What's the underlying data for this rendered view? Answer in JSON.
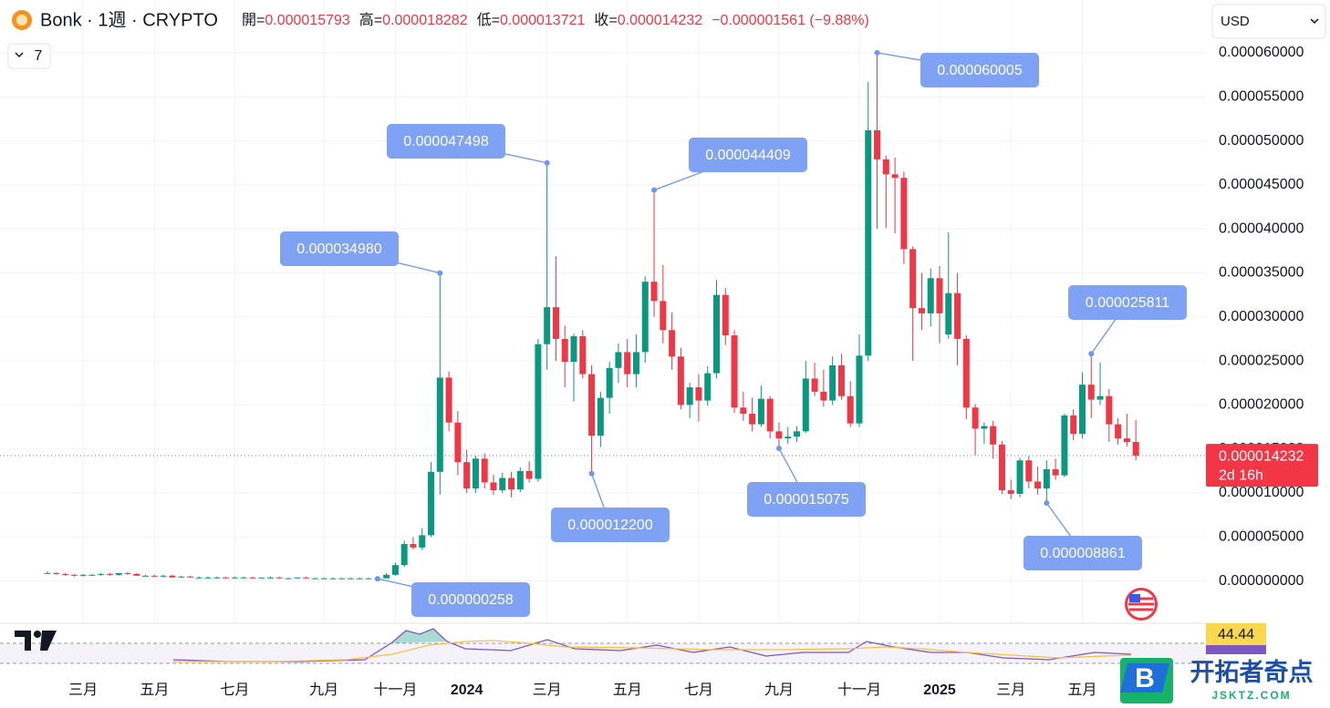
{
  "chart_data": {
    "type": "candlestick",
    "title": "Bonk · 1週 · CRYPTO",
    "header_labels": [
      "開=",
      "高=",
      "低=",
      "收="
    ],
    "change": "−0.000001561 (−9.88%)",
    "currency": "USD",
    "indicator_count": "7",
    "countdown": "2d 16h",
    "rsi_value": "44.44",
    "watermark": {
      "title": "开拓者奇点",
      "site": "JSKTZ.COM"
    },
    "up_color": "#089981",
    "down_color": "#f23645",
    "grid": true,
    "categories": [
      null,
      null,
      null,
      null,
      "三月",
      null,
      null,
      null,
      null,
      null,
      null,
      null,
      "五月",
      null,
      null,
      null,
      null,
      null,
      null,
      null,
      null,
      "七月",
      null,
      null,
      null,
      null,
      null,
      null,
      null,
      null,
      null,
      "九月",
      null,
      null,
      null,
      null,
      null,
      null,
      null,
      "十一月",
      null,
      null,
      null,
      null,
      null,
      null,
      null,
      "2024",
      null,
      null,
      null,
      null,
      null,
      null,
      null,
      null,
      "三月",
      null,
      null,
      null,
      null,
      null,
      null,
      null,
      null,
      "五月",
      null,
      null,
      null,
      null,
      null,
      null,
      null,
      "七月",
      null,
      null,
      null,
      null,
      null,
      null,
      null,
      null,
      "九月",
      null,
      null,
      null,
      null,
      null,
      null,
      null,
      null,
      "十一月",
      null,
      null,
      null,
      null,
      null,
      null,
      null,
      null,
      "2025",
      null,
      null,
      null,
      null,
      null,
      null,
      null,
      "三月",
      null,
      null,
      null,
      null,
      null,
      null,
      null,
      "五月",
      null,
      null,
      null,
      null,
      null,
      null
    ],
    "open": [
      9e-07,
      9e-07,
      8e-07,
      7e-07,
      6e-07,
      7e-07,
      7e-07,
      8e-07,
      7e-07,
      9e-07,
      8e-07,
      6e-07,
      6e-07,
      5e-07,
      6e-07,
      4e-07,
      5e-07,
      4e-07,
      4e-07,
      4e-07,
      4e-07,
      3e-07,
      4e-07,
      4e-07,
      3e-07,
      4e-07,
      4e-07,
      3e-07,
      3e-07,
      4e-07,
      3e-07,
      3e-07,
      3e-07,
      3e-07,
      3e-07,
      3e-07,
      3e-07,
      3e-07,
      3e-07,
      7e-07,
      1.8e-06,
      4.2e-06,
      3.8e-06,
      5.2e-06,
      1.24e-05,
      2.31e-05,
      1.8e-05,
      1.35e-05,
      1.05e-05,
      1.39e-05,
      1.12e-05,
      1.03e-05,
      1.17e-05,
      1.04e-05,
      1.25e-05,
      1.16e-05,
      2.69e-05,
      3.11e-05,
      2.75e-05,
      2.49e-05,
      2.78e-05,
      2.35e-05,
      1.65e-05,
      2.08e-05,
      2.42e-05,
      2.6e-05,
      2.35e-05,
      2.6e-05,
      3.4e-05,
      3.18e-05,
      2.85e-05,
      2.55e-05,
      2e-05,
      2.2e-05,
      2.05e-05,
      2.36e-05,
      3.25e-05,
      2.79e-05,
      1.97e-05,
      1.9e-05,
      1.78e-05,
      2.07e-05,
      1.7e-05,
      1.62e-05,
      1.64e-05,
      1.7e-05,
      2.3e-05,
      2.15e-05,
      2.05e-05,
      2.45e-05,
      2.1e-05,
      1.79e-05,
      2.56e-05,
      5.12e-05,
      4.79e-05,
      4.62e-05,
      4.58e-05,
      3.77e-05,
      3.1e-05,
      3.04e-05,
      3.44e-05,
      2.8e-05,
      3.27e-05,
      2.75e-05,
      1.97e-05,
      1.73e-05,
      1.76e-05,
      1.55e-05,
      1.03e-05,
      9.9e-06,
      1.37e-05,
      1.13e-05,
      1.05e-05,
      1.27e-05,
      1.2e-05,
      1.88e-05,
      1.67e-05,
      2.23e-05,
      2.06e-05,
      2.1e-05,
      1.78e-05,
      1.62e-05,
      1.5793e-05
    ],
    "high": [
      1.1e-06,
      1e-06,
      9e-07,
      8e-07,
      8e-07,
      8e-07,
      9e-07,
      9e-07,
      9e-07,
      1e-06,
      9e-07,
      7e-07,
      7e-07,
      7e-07,
      7e-07,
      6e-07,
      6e-07,
      5e-07,
      5e-07,
      5e-07,
      5e-07,
      5e-07,
      5e-07,
      5e-07,
      4e-07,
      5e-07,
      5e-07,
      4e-07,
      4e-07,
      5e-07,
      4e-07,
      4e-07,
      4e-07,
      4e-07,
      4e-07,
      4e-07,
      4e-07,
      4e-07,
      9e-07,
      2.1e-06,
      4.6e-06,
      5e-06,
      6e-06,
      1.35e-05,
      3.498e-05,
      2.38e-05,
      1.93e-05,
      1.49e-05,
      1.42e-05,
      1.45e-05,
      1.21e-05,
      1.23e-05,
      1.24e-05,
      1.29e-05,
      1.36e-05,
      2.75e-05,
      4.7498e-05,
      3.69e-05,
      2.9e-05,
      2.81e-05,
      2.85e-05,
      2.45e-05,
      2.15e-05,
      2.49e-05,
      2.7e-05,
      2.75e-05,
      2.8e-05,
      3.46e-05,
      4.4409e-05,
      3.59e-05,
      3.05e-05,
      2.65e-05,
      2.25e-05,
      2.35e-05,
      2.44e-05,
      3.42e-05,
      3.33e-05,
      2.85e-05,
      2.15e-05,
      2.08e-05,
      2.22e-05,
      2.1e-05,
      1.8e-05,
      1.75e-05,
      1.76e-05,
      2.5e-05,
      2.48e-05,
      2.4e-05,
      2.55e-05,
      2.58e-05,
      2.27e-05,
      2.8e-05,
      5.67e-05,
      6.0005e-05,
      4.83e-05,
      4.81e-05,
      4.65e-05,
      3.8e-05,
      3.5e-05,
      3.55e-05,
      3.58e-05,
      3.96e-05,
      3.5e-05,
      2.79e-05,
      2.01e-05,
      1.8e-05,
      1.82e-05,
      1.59e-05,
      1.15e-05,
      1.4e-05,
      1.42e-05,
      1.3e-05,
      1.37e-05,
      1.39e-05,
      1.9e-05,
      1.95e-05,
      2.37e-05,
      2.5811e-05,
      2.48e-05,
      2.18e-05,
      1.85e-05,
      1.9e-05,
      1.8282e-05
    ],
    "low": [
      8e-07,
      7e-07,
      6e-07,
      5e-07,
      5e-07,
      6e-07,
      6e-07,
      6e-07,
      6e-07,
      7e-07,
      6e-07,
      5e-07,
      5e-07,
      4e-07,
      4e-07,
      4e-07,
      4e-07,
      3e-07,
      3e-07,
      3e-07,
      3e-07,
      3e-07,
      3e-07,
      3e-07,
      3e-07,
      3e-07,
      3e-07,
      3e-07,
      3e-07,
      3e-07,
      3e-07,
      3e-07,
      3e-07,
      3e-07,
      3e-07,
      3e-07,
      3e-07,
      2.58e-07,
      3e-07,
      6e-07,
      1.6e-06,
      3.6e-06,
      3.5e-06,
      5e-06,
      9.8e-06,
      1.7e-05,
      1.2e-05,
      1e-05,
      1e-05,
      1.05e-05,
      9.8e-06,
      1e-05,
      9.5e-06,
      1.01e-05,
      1.12e-05,
      1.13e-05,
      2.4e-05,
      2.5e-05,
      2.2e-05,
      2.04e-05,
      2.3e-05,
      1.22e-05,
      1.52e-05,
      1.9e-05,
      2.25e-05,
      2.2e-05,
      2.2e-05,
      2.48e-05,
      3e-05,
      2.7e-05,
      2.4e-05,
      1.95e-05,
      1.85e-05,
      1.81e-05,
      1.99e-05,
      2.3e-05,
      2.68e-05,
      1.91e-05,
      1.82e-05,
      1.7e-05,
      1.75e-05,
      1.62e-05,
      1.5075e-05,
      1.56e-05,
      1.58e-05,
      1.68e-05,
      2.1e-05,
      1.98e-05,
      2e-05,
      2.06e-05,
      1.75e-05,
      1.75e-05,
      2.5e-05,
      4e-05,
      4.01e-05,
      3.95e-05,
      3.6e-05,
      2.5e-05,
      2.85e-05,
      2.89e-05,
      2.7e-05,
      2.75e-05,
      2.45e-05,
      1.84e-05,
      1.43e-05,
      1.56e-05,
      1.39e-05,
      9.9e-06,
      9.3e-06,
      9.5e-06,
      1.05e-05,
      9.8e-06,
      8.861e-06,
      1.15e-05,
      1.18e-05,
      1.6e-05,
      1.62e-05,
      1.85e-05,
      2e-05,
      1.58e-05,
      1.55e-05,
      1.53e-05,
      1.3721e-05
    ],
    "close": [
      9e-07,
      8e-07,
      7e-07,
      6e-07,
      7e-07,
      7e-07,
      8e-07,
      7e-07,
      9e-07,
      8e-07,
      6e-07,
      6e-07,
      5e-07,
      6e-07,
      4e-07,
      5e-07,
      4e-07,
      4e-07,
      4e-07,
      4e-07,
      3e-07,
      4e-07,
      4e-07,
      3e-07,
      4e-07,
      4e-07,
      3e-07,
      3e-07,
      4e-07,
      3e-07,
      3e-07,
      3e-07,
      3e-07,
      3e-07,
      3e-07,
      3e-07,
      3e-07,
      3e-07,
      7e-07,
      1.8e-06,
      4.2e-06,
      3.8e-06,
      5.2e-06,
      1.24e-05,
      2.31e-05,
      1.8e-05,
      1.35e-05,
      1.05e-05,
      1.39e-05,
      1.12e-05,
      1.03e-05,
      1.17e-05,
      1.04e-05,
      1.25e-05,
      1.16e-05,
      2.69e-05,
      3.11e-05,
      2.75e-05,
      2.49e-05,
      2.78e-05,
      2.35e-05,
      1.65e-05,
      2.08e-05,
      2.42e-05,
      2.6e-05,
      2.35e-05,
      2.6e-05,
      3.4e-05,
      3.18e-05,
      2.85e-05,
      2.55e-05,
      2e-05,
      2.2e-05,
      2.05e-05,
      2.36e-05,
      3.25e-05,
      2.79e-05,
      1.97e-05,
      1.9e-05,
      1.78e-05,
      2.07e-05,
      1.7e-05,
      1.62e-05,
      1.64e-05,
      1.7e-05,
      2.3e-05,
      2.15e-05,
      2.05e-05,
      2.45e-05,
      2.1e-05,
      1.79e-05,
      2.56e-05,
      5.12e-05,
      4.79e-05,
      4.62e-05,
      4.58e-05,
      3.77e-05,
      3.1e-05,
      3.04e-05,
      3.44e-05,
      3.04e-05,
      3.27e-05,
      2.75e-05,
      1.97e-05,
      1.73e-05,
      1.76e-05,
      1.55e-05,
      1.03e-05,
      9.9e-06,
      1.37e-05,
      1.13e-05,
      1.05e-05,
      1.27e-05,
      1.2e-05,
      1.88e-05,
      1.67e-05,
      2.23e-05,
      2.06e-05,
      2.1e-05,
      1.78e-05,
      1.62e-05,
      1.5793e-05,
      1.4232e-05
    ],
    "annotations": [
      {
        "label": "0.000034980",
        "value": 3.498e-05
      },
      {
        "label": "0.000047498",
        "value": 4.7498e-05
      },
      {
        "label": "0.000044409",
        "value": 4.4409e-05
      },
      {
        "label": "0.000060005",
        "value": 6.0005e-05
      },
      {
        "label": "0.000025811",
        "value": 2.5811e-05
      },
      {
        "label": "0.000000258",
        "value": 2.58e-07
      },
      {
        "label": "0.000012200",
        "value": 1.22e-05
      },
      {
        "label": "0.000015075",
        "value": 1.5075e-05
      },
      {
        "label": "0.000008861",
        "value": 8.861e-06
      }
    ],
    "ylim": [
      -4.7e-06,
      6.6e-05
    ],
    "yticks": [
      {
        "value": 0,
        "label": "0.000000000"
      },
      {
        "value": 5e-06,
        "label": "0.000005000"
      },
      {
        "value": 1e-05,
        "label": "0.000010000"
      },
      {
        "value": 1.5e-05,
        "label": "0.000015000"
      },
      {
        "value": 2e-05,
        "label": "0.000020000"
      },
      {
        "value": 2.5e-05,
        "label": "0.000025000"
      },
      {
        "value": 3e-05,
        "label": "0.000030000"
      },
      {
        "value": 3.5e-05,
        "label": "0.000035000"
      },
      {
        "value": 4e-05,
        "label": "0.000040000"
      },
      {
        "value": 4.5e-05,
        "label": "0.000045000"
      },
      {
        "value": 5e-05,
        "label": "0.000050000"
      },
      {
        "value": 5.5e-05,
        "label": "0.000055000"
      },
      {
        "value": 6e-05,
        "label": "0.000060000"
      }
    ]
  }
}
